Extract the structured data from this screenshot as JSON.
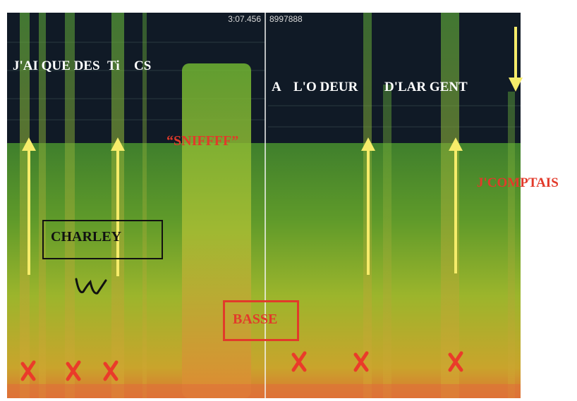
{
  "header": {
    "time": "3:07.456",
    "sample": "8997888"
  },
  "lyrics": {
    "left": [
      "J'AI QUE DES",
      "Ti",
      "CS"
    ],
    "right": [
      "A",
      "L'O DEUR",
      "D'LAR GENT"
    ]
  },
  "annotations": {
    "sniff": "“SNIFFFF”",
    "comptais": "J'COMPTAIS",
    "charley": "CHARLEY",
    "basse": "BASSE"
  }
}
